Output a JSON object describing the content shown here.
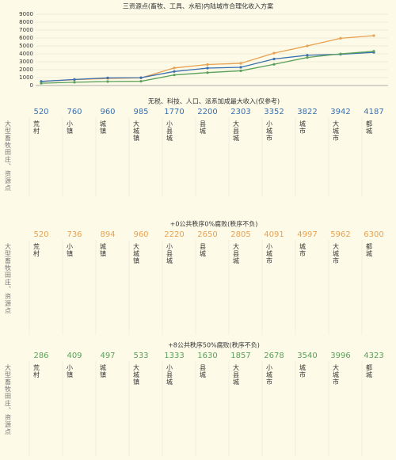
{
  "chart_data": {
    "type": "line",
    "title": "三资源点(畜牧、工具、水稻)内陆城市合理化收入方案",
    "ylim": [
      0,
      9000
    ],
    "yticks": [
      0,
      1000,
      2000,
      3000,
      4000,
      5000,
      6000,
      7000,
      8000,
      9000
    ],
    "grid": true,
    "series": [
      {
        "color": "#e8a050",
        "values": [
          520,
          736,
          894,
          960,
          2220,
          2650,
          2805,
          4091,
          4997,
          5962,
          6300
        ]
      },
      {
        "color": "#3a6fb0",
        "values": [
          520,
          760,
          960,
          985,
          1770,
          2200,
          2303,
          3352,
          3822,
          3942,
          4187
        ]
      },
      {
        "color": "#5aa05a",
        "values": [
          286,
          409,
          497,
          533,
          1333,
          1630,
          1857,
          2678,
          3540,
          3996,
          4323
        ]
      }
    ]
  },
  "settlements": [
    "荒村",
    "小镇",
    "城镇",
    "大城镇",
    "小县城",
    "县城",
    "大县城",
    "小城市",
    "城市",
    "大城市",
    "都城"
  ],
  "row_label": "大型畜牧田庄、资源点",
  "tables": [
    {
      "title": "无税、科技、人口、派系加成最大收入(仅参考)",
      "color": "#3a6fb0",
      "values": [
        520,
        760,
        960,
        985,
        1770,
        2200,
        2303,
        3352,
        3822,
        3942,
        4187
      ]
    },
    {
      "title": "+0公共秩序0%腐败(秩序不负)",
      "color": "#e8a050",
      "values": [
        520,
        736,
        894,
        960,
        2220,
        2650,
        2805,
        4091,
        4997,
        5962,
        6300
      ]
    },
    {
      "title": "+8公共秩序50%腐败(秩序不负)",
      "color": "#5aa05a",
      "values": [
        286,
        409,
        497,
        533,
        1333,
        1630,
        1857,
        2678,
        3540,
        3996,
        4323
      ]
    }
  ]
}
